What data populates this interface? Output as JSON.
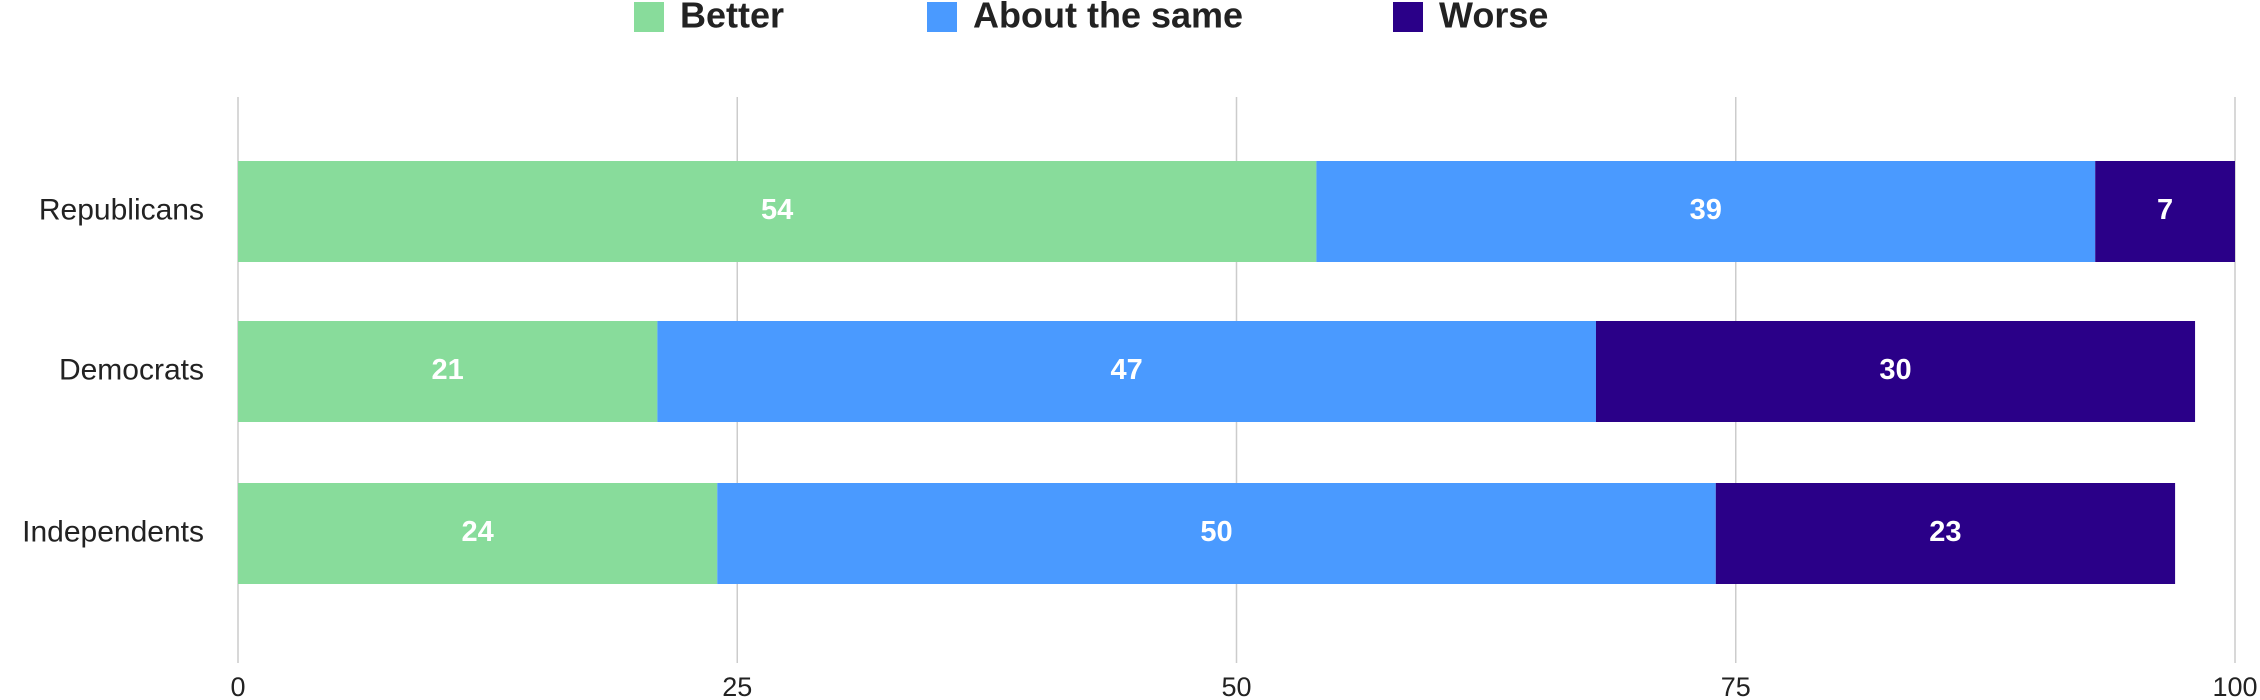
{
  "chart_data": {
    "type": "bar",
    "orientation": "horizontal",
    "stacked": true,
    "categories": [
      "Republicans",
      "Democrats",
      "Independents"
    ],
    "series": [
      {
        "name": "Better",
        "color": "#88dc9b",
        "values": [
          54,
          21,
          24
        ]
      },
      {
        "name": "About the same",
        "color": "#4a9aff",
        "values": [
          39,
          47,
          50
        ]
      },
      {
        "name": "Worse",
        "color": "#2a0088",
        "values": [
          7,
          30,
          23
        ]
      }
    ],
    "xlim": [
      0,
      100
    ],
    "xticks": [
      0,
      25,
      50,
      75,
      100
    ],
    "grid": true,
    "legend": "top"
  }
}
